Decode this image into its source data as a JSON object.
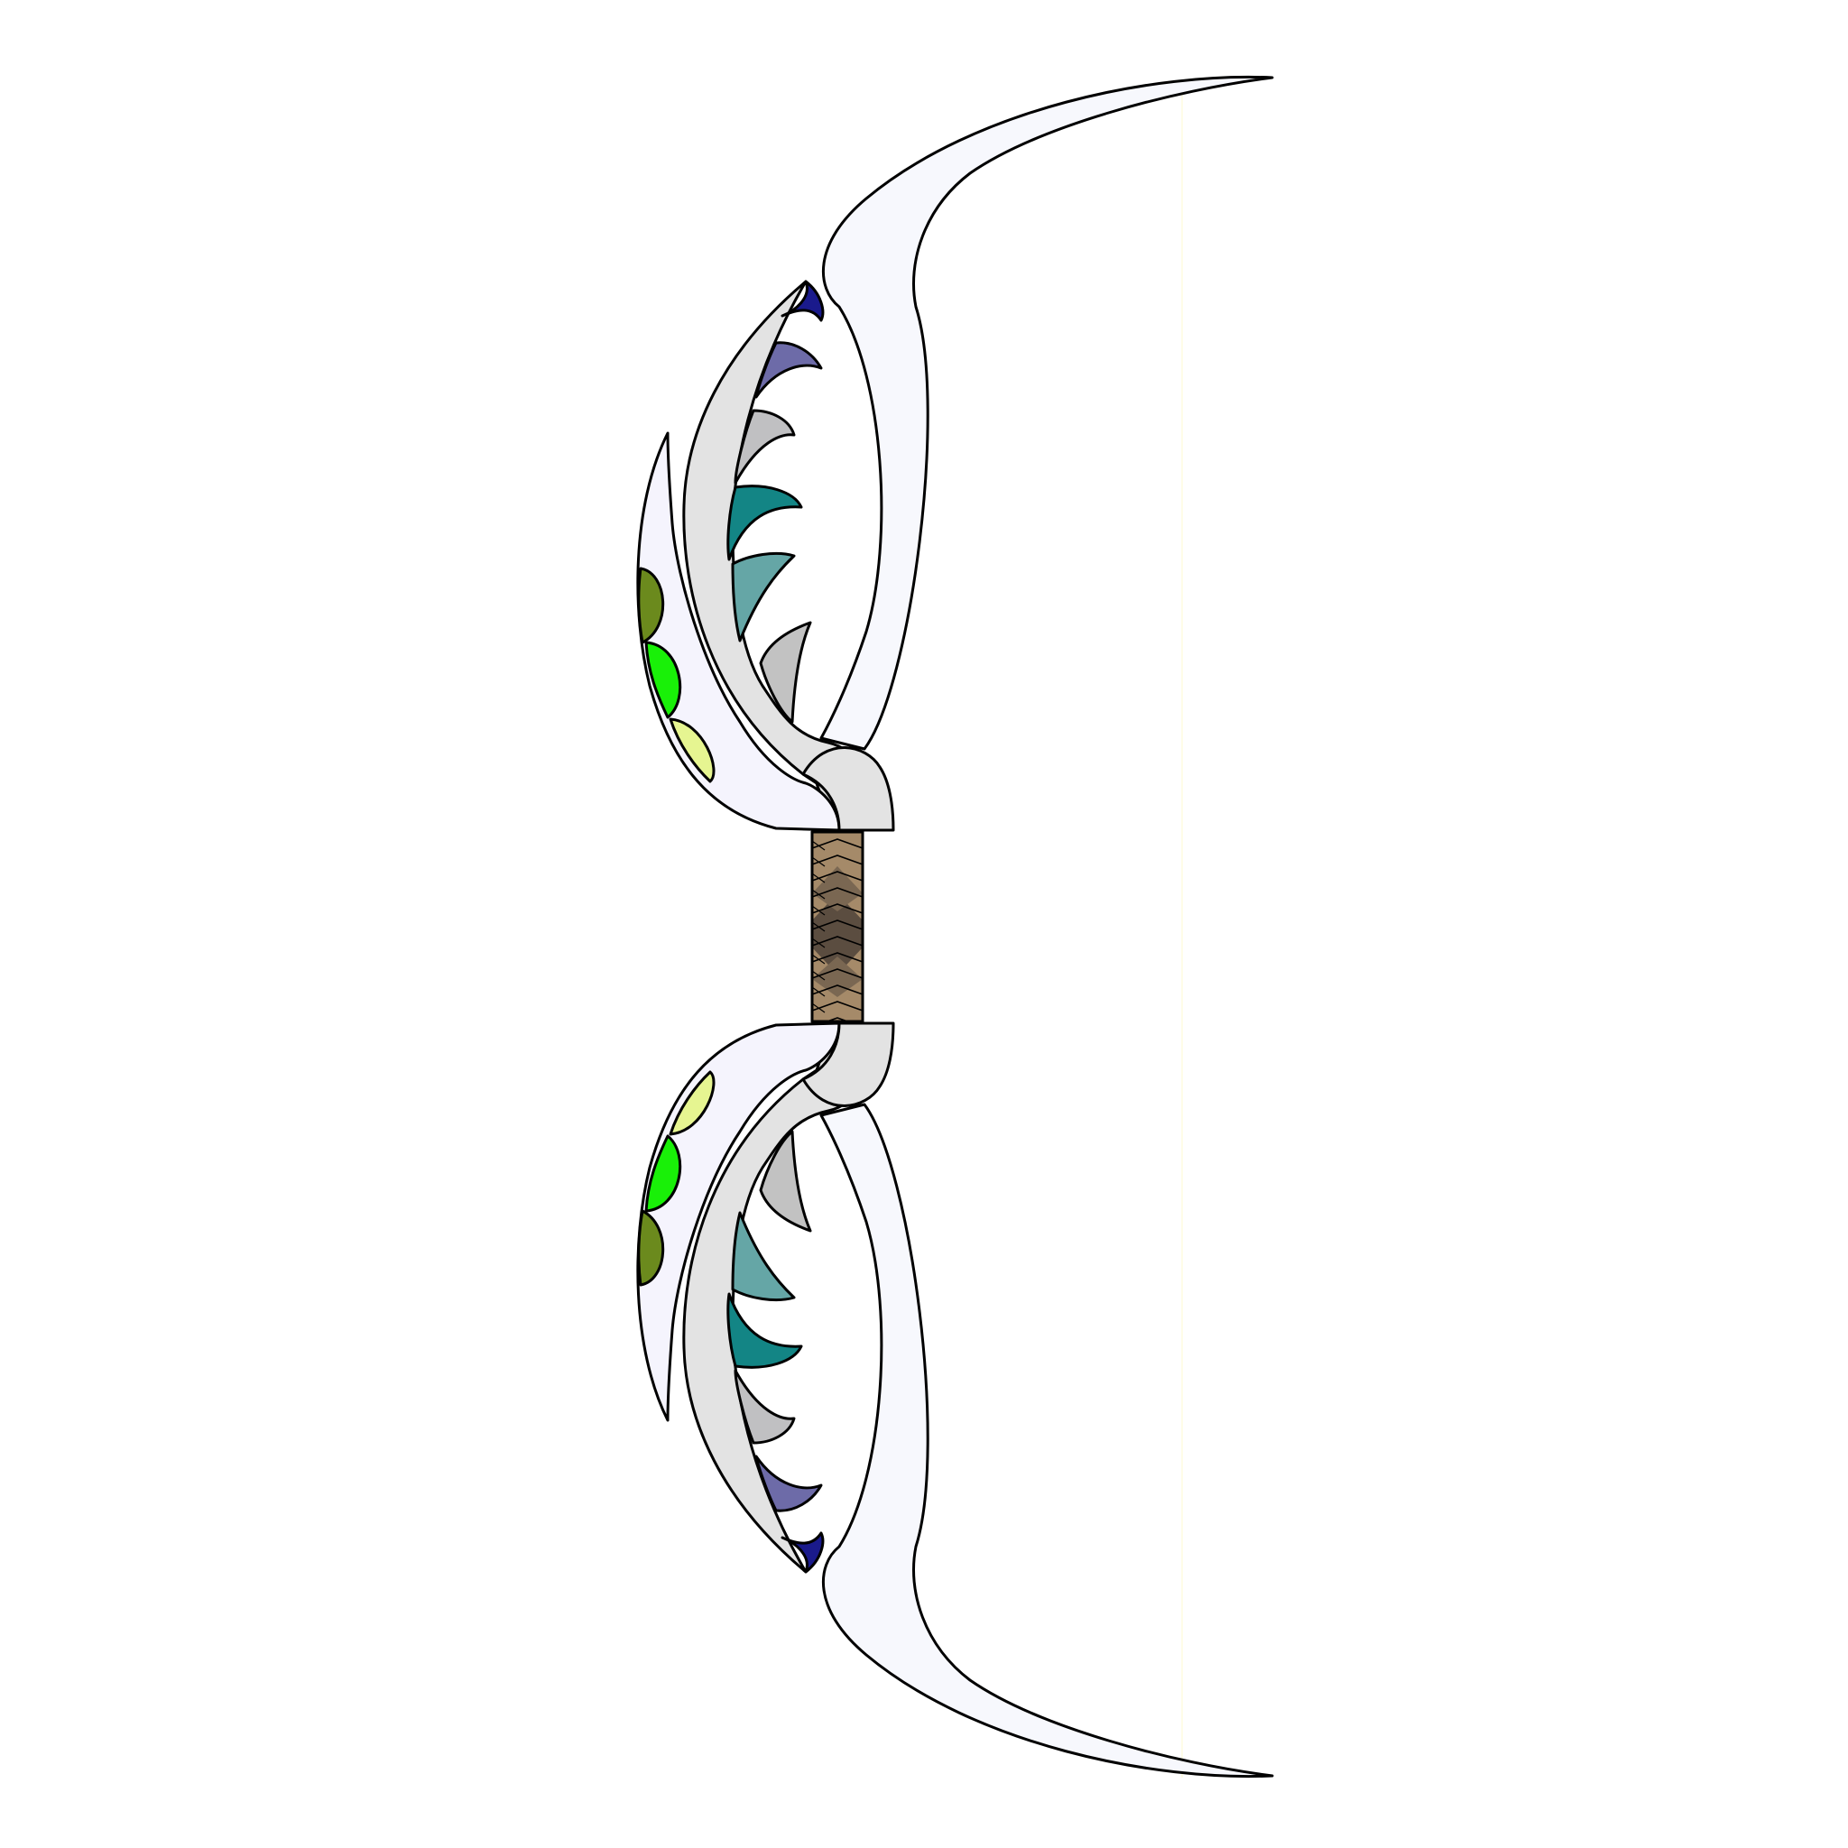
{
  "canvas": {
    "background": "#ffffff"
  },
  "bow": {
    "limb_color": "#f7f8fd",
    "inner_limb_color": "#e3e3e3",
    "shell_color": "#f5f4fd",
    "string_color": "#fffde8",
    "grip": {
      "base_color": "#a58a69",
      "dark_color": "#5b4d40",
      "mid_color": "#7a6752"
    },
    "inner_spikes": {
      "colors": [
        "#1a1a8c",
        "#6d6ba8",
        "#c0c0c2",
        "#138585",
        "#65a6a6",
        "#c2c2c2"
      ]
    },
    "outer_scales": {
      "colors": [
        "#6b8a1d",
        "#19f008",
        "#e6f591"
      ]
    },
    "icons": [
      "bow-icon"
    ]
  }
}
